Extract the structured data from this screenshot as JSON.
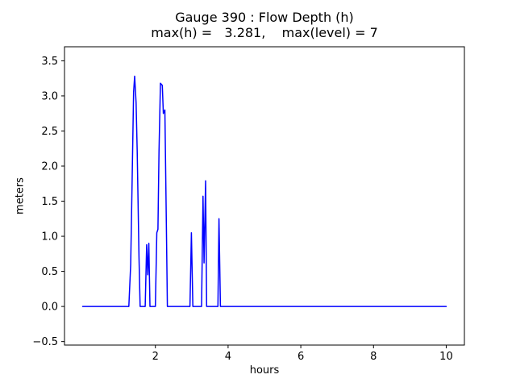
{
  "figure": {
    "background": "#ffffff"
  },
  "chart_data": {
    "type": "line",
    "title": "Gauge 390 : Flow Depth (h)",
    "subtitle": "max(h) =   3.281,    max(level) = 7",
    "xlabel": "hours",
    "ylabel": "meters",
    "max_h": 3.281,
    "max_level": 7,
    "xlim": [
      -0.5,
      10.5
    ],
    "ylim": [
      -0.55,
      3.7
    ],
    "grid": false,
    "legend": "none",
    "axes_color": "#000000",
    "tick_font_size": 13,
    "xticks": [
      {
        "v": 2,
        "label": "2"
      },
      {
        "v": 4,
        "label": "4"
      },
      {
        "v": 6,
        "label": "6"
      },
      {
        "v": 8,
        "label": "8"
      },
      {
        "v": 10,
        "label": "10"
      }
    ],
    "yticks": [
      {
        "v": -0.5,
        "label": "−0.5"
      },
      {
        "v": 0.0,
        "label": "0.0"
      },
      {
        "v": 0.5,
        "label": "0.5"
      },
      {
        "v": 1.0,
        "label": "1.0"
      },
      {
        "v": 1.5,
        "label": "1.5"
      },
      {
        "v": 2.0,
        "label": "2.0"
      },
      {
        "v": 2.5,
        "label": "2.5"
      },
      {
        "v": 3.0,
        "label": "3.0"
      },
      {
        "v": 3.5,
        "label": "3.5"
      }
    ],
    "series": [
      {
        "name": "flow_depth_h",
        "color": "#0000ff",
        "linewidth": 1.5,
        "points": [
          [
            0.0,
            0
          ],
          [
            1.27,
            0
          ],
          [
            1.32,
            0.6
          ],
          [
            1.36,
            1.8
          ],
          [
            1.4,
            3.05
          ],
          [
            1.43,
            3.281
          ],
          [
            1.47,
            2.9
          ],
          [
            1.5,
            2.2
          ],
          [
            1.55,
            0.7
          ],
          [
            1.58,
            0
          ],
          [
            1.72,
            0
          ],
          [
            1.76,
            0.88
          ],
          [
            1.79,
            0.45
          ],
          [
            1.82,
            0.9
          ],
          [
            1.85,
            0
          ],
          [
            2.0,
            0
          ],
          [
            2.04,
            1.05
          ],
          [
            2.07,
            1.1
          ],
          [
            2.1,
            2.2
          ],
          [
            2.14,
            3.18
          ],
          [
            2.19,
            3.15
          ],
          [
            2.22,
            2.75
          ],
          [
            2.26,
            2.8
          ],
          [
            2.3,
            1.2
          ],
          [
            2.33,
            0
          ],
          [
            2.95,
            0
          ],
          [
            2.99,
            1.05
          ],
          [
            3.03,
            0
          ],
          [
            3.27,
            0
          ],
          [
            3.31,
            1.57
          ],
          [
            3.34,
            0.62
          ],
          [
            3.38,
            1.79
          ],
          [
            3.41,
            0
          ],
          [
            3.72,
            0
          ],
          [
            3.75,
            1.25
          ],
          [
            3.79,
            0
          ],
          [
            10.0,
            0
          ]
        ]
      }
    ]
  }
}
